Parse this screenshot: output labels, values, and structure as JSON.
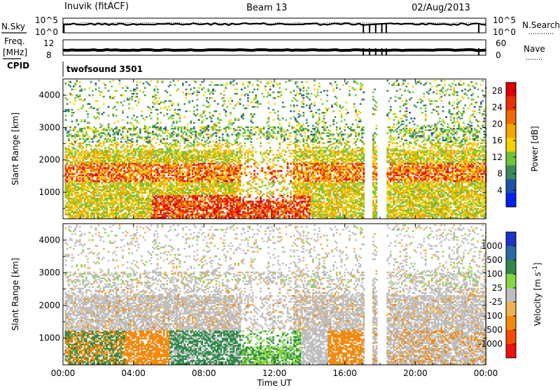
{
  "header": {
    "station": "Inuvik (fitACF)",
    "beam": "Beam 13",
    "date": "02/Aug/2013"
  },
  "noise_panel": {
    "left_label": "N.Sky",
    "left_ticks": [
      "10^5",
      "10^0"
    ],
    "right_label": "N.Search",
    "right_ticks": [
      "10^5",
      "10^0"
    ]
  },
  "freq_panel": {
    "left_label_1": "Freq.",
    "left_label_2": "[MHz]",
    "left_ticks": [
      "12",
      "8"
    ],
    "right_label": "Nave",
    "right_ticks": [
      "60",
      "0"
    ]
  },
  "cpid": {
    "label": "CPID",
    "value": "twofsound 3501"
  },
  "colors": {
    "power_scale": [
      "#0022ee",
      "#1e4faa",
      "#3a8a5a",
      "#6fc43a",
      "#f6d200",
      "#f7a400",
      "#f06a00",
      "#e83000",
      "#dd0000"
    ],
    "velocity_scale": [
      "#f01010",
      "#f54a00",
      "#f28a10",
      "#f0b050",
      "#bebebe",
      "#86d640",
      "#2f8a4a",
      "#2a6aa4",
      "#2032c8"
    ]
  },
  "chart_data": [
    {
      "type": "heatmap",
      "title": "Power",
      "xlabel": "",
      "ylabel": "Slant Range [km]",
      "x_ticks": [
        "00:00",
        "04:00",
        "08:00",
        "12:00",
        "16:00",
        "20:00",
        "00:00"
      ],
      "y_ticks": [
        "1000",
        "2000",
        "3000",
        "4000"
      ],
      "xlim": [
        0,
        24
      ],
      "ylim": [
        180,
        4500
      ],
      "colorbar": {
        "label": "Power [dB]",
        "ticks": [
          "4",
          "8",
          "12",
          "16",
          "20",
          "24",
          "28"
        ],
        "range": [
          0,
          30
        ]
      }
    },
    {
      "type": "heatmap",
      "title": "Velocity",
      "xlabel": "Time UT",
      "ylabel": "Slant Range [km]",
      "x_ticks": [
        "00:00",
        "04:00",
        "08:00",
        "12:00",
        "16:00",
        "20:00",
        "00:00"
      ],
      "y_ticks": [
        "1000",
        "2000",
        "3000",
        "4000"
      ],
      "xlim": [
        0,
        24
      ],
      "ylim": [
        180,
        4500
      ],
      "colorbar": {
        "label": "Velocity [m s^-1]",
        "ticks": [
          "1000",
          "500",
          "100",
          "25",
          "-25",
          "-100",
          "-500",
          "-1000"
        ]
      }
    }
  ]
}
